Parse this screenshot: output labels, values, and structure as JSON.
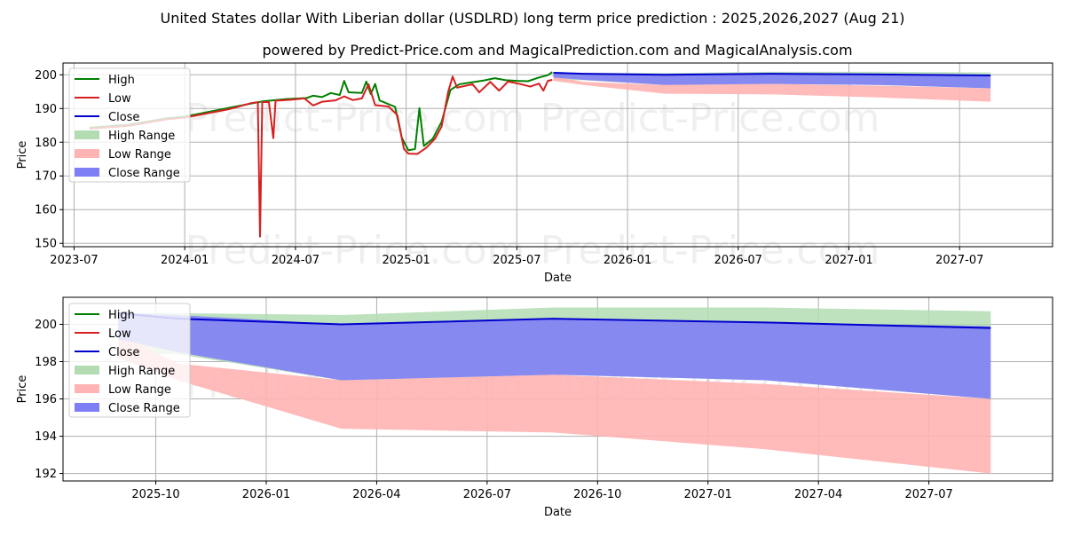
{
  "chart_data": {
    "title": "United States dollar With Liberian dollar (USDLRD) long term price prediction : 2025,2026,2027 (Aug 21)",
    "subtitle": "powered by Predict-Price.com and MagicalPrediction.com and MagicalAnalysis.com",
    "watermark": "Predict-Price.com",
    "legend_entries": [
      "High",
      "Low",
      "Close",
      "High Range",
      "Low Range",
      "Close Range"
    ],
    "colors": {
      "high": "#008000",
      "low": "#d62020",
      "close": "#0000cc",
      "high_range": "#b3dcb3",
      "low_range": "#ffb3b3",
      "close_range": "#7f7ff5",
      "grid": "#b0b0b0"
    },
    "charts": [
      {
        "type": "line",
        "xlabel": "Date",
        "ylabel": "Price",
        "grid": true,
        "legend_position": "top-left",
        "x_ticks": [
          "2023-07",
          "2024-01",
          "2024-07",
          "2025-01",
          "2025-07",
          "2026-01",
          "2026-07",
          "2027-01",
          "2027-07"
        ],
        "y_ticks": [
          "150",
          "160",
          "170",
          "180",
          "190",
          "200"
        ],
        "xlim": [
          2023.45,
          2027.92
        ],
        "ylim": [
          149,
          203.5
        ],
        "series": [
          {
            "name": "High",
            "points": [
              [
                2023.57,
                184.3
              ],
              [
                2023.75,
                185.2
              ],
              [
                2023.92,
                187.1
              ],
              [
                2024.0,
                187.6
              ],
              [
                2024.2,
                190.2
              ],
              [
                2024.35,
                192.1
              ],
              [
                2024.46,
                192.8
              ],
              [
                2024.55,
                193.1
              ],
              [
                2024.58,
                193.8
              ],
              [
                2024.62,
                193.4
              ],
              [
                2024.66,
                194.6
              ],
              [
                2024.7,
                194.0
              ],
              [
                2024.72,
                198.2
              ],
              [
                2024.74,
                194.8
              ],
              [
                2024.8,
                194.6
              ],
              [
                2024.82,
                198.0
              ],
              [
                2024.84,
                194.3
              ],
              [
                2024.86,
                197.3
              ],
              [
                2024.88,
                192.4
              ],
              [
                2024.95,
                190.5
              ],
              [
                2024.98,
                181.4
              ],
              [
                2025.01,
                177.6
              ],
              [
                2025.04,
                178.0
              ],
              [
                2025.06,
                190.1
              ],
              [
                2025.08,
                178.9
              ],
              [
                2025.12,
                181.0
              ],
              [
                2025.16,
                186.0
              ],
              [
                2025.2,
                195.5
              ],
              [
                2025.24,
                197.2
              ],
              [
                2025.3,
                197.8
              ],
              [
                2025.35,
                198.3
              ],
              [
                2025.4,
                199.0
              ],
              [
                2025.45,
                198.4
              ],
              [
                2025.5,
                198.2
              ],
              [
                2025.55,
                198.1
              ],
              [
                2025.6,
                199.2
              ],
              [
                2025.64,
                199.9
              ],
              [
                2025.66,
                200.8
              ]
            ]
          },
          {
            "name": "Low",
            "points": [
              [
                2023.57,
                184.0
              ],
              [
                2023.75,
                184.9
              ],
              [
                2023.92,
                186.8
              ],
              [
                2024.0,
                187.3
              ],
              [
                2024.2,
                189.8
              ],
              [
                2024.3,
                191.6
              ],
              [
                2024.33,
                191.9
              ],
              [
                2024.34,
                152.0
              ],
              [
                2024.35,
                191.9
              ],
              [
                2024.38,
                191.9
              ],
              [
                2024.4,
                181.2
              ],
              [
                2024.41,
                192.3
              ],
              [
                2024.48,
                192.6
              ],
              [
                2024.54,
                193.0
              ],
              [
                2024.58,
                190.9
              ],
              [
                2024.62,
                192.0
              ],
              [
                2024.68,
                192.4
              ],
              [
                2024.72,
                193.6
              ],
              [
                2024.76,
                192.5
              ],
              [
                2024.8,
                193.0
              ],
              [
                2024.83,
                197.2
              ],
              [
                2024.86,
                191.0
              ],
              [
                2024.92,
                190.6
              ],
              [
                2024.96,
                188.1
              ],
              [
                2024.99,
                178.0
              ],
              [
                2025.01,
                176.6
              ],
              [
                2025.05,
                176.5
              ],
              [
                2025.09,
                178.3
              ],
              [
                2025.13,
                181.0
              ],
              [
                2025.16,
                184.6
              ],
              [
                2025.19,
                195.0
              ],
              [
                2025.21,
                199.5
              ],
              [
                2025.23,
                196.2
              ],
              [
                2025.3,
                197.2
              ],
              [
                2025.33,
                194.8
              ],
              [
                2025.38,
                197.9
              ],
              [
                2025.42,
                195.3
              ],
              [
                2025.46,
                198.0
              ],
              [
                2025.52,
                197.2
              ],
              [
                2025.56,
                196.5
              ],
              [
                2025.6,
                197.4
              ],
              [
                2025.62,
                195.3
              ],
              [
                2025.64,
                198.2
              ],
              [
                2025.66,
                198.5
              ]
            ]
          },
          {
            "name": "Close",
            "points": [
              [
                2025.665,
                200.6
              ],
              [
                2025.8,
                200.3
              ],
              [
                2026.17,
                200.0
              ],
              [
                2026.65,
                200.3
              ],
              [
                2027.13,
                200.1
              ],
              [
                2027.64,
                199.8
              ]
            ]
          },
          {
            "name": "High Range",
            "points_upper": [
              [
                2025.665,
                200.6
              ],
              [
                2025.8,
                200.6
              ],
              [
                2026.17,
                200.5
              ],
              [
                2026.65,
                200.9
              ],
              [
                2027.13,
                200.9
              ],
              [
                2027.64,
                200.7
              ]
            ],
            "points_lower": [
              [
                2025.665,
                198.4
              ],
              [
                2025.8,
                198.4
              ],
              [
                2026.17,
                197.0
              ],
              [
                2026.65,
                197.3
              ],
              [
                2027.13,
                197.0
              ],
              [
                2027.64,
                196.0
              ]
            ]
          },
          {
            "name": "Low Range",
            "points_upper": [
              [
                2025.665,
                199.5
              ],
              [
                2025.8,
                197.9
              ],
              [
                2026.17,
                197.0
              ],
              [
                2026.65,
                197.3
              ],
              [
                2027.13,
                196.8
              ],
              [
                2027.64,
                196.0
              ]
            ],
            "points_lower": [
              [
                2025.665,
                198.2
              ],
              [
                2025.8,
                197.0
              ],
              [
                2026.17,
                194.4
              ],
              [
                2026.65,
                194.2
              ],
              [
                2027.13,
                193.3
              ],
              [
                2027.64,
                192.0
              ]
            ]
          },
          {
            "name": "Close Range",
            "points_upper": [
              [
                2025.665,
                200.6
              ],
              [
                2025.8,
                200.5
              ],
              [
                2026.17,
                200.0
              ],
              [
                2026.65,
                200.3
              ],
              [
                2027.13,
                200.1
              ],
              [
                2027.64,
                199.9
              ]
            ],
            "points_lower": [
              [
                2025.665,
                199.2
              ],
              [
                2025.8,
                198.5
              ],
              [
                2026.17,
                197.0
              ],
              [
                2026.65,
                197.3
              ],
              [
                2027.13,
                197.0
              ],
              [
                2027.64,
                196.0
              ]
            ]
          }
        ]
      },
      {
        "type": "line",
        "xlabel": "Date",
        "ylabel": "Price",
        "grid": true,
        "legend_position": "top-left",
        "x_ticks": [
          "2025-10",
          "2026-01",
          "2026-04",
          "2026-07",
          "2026-10",
          "2027-01",
          "2027-04",
          "2027-07"
        ],
        "y_ticks": [
          "192",
          "194",
          "196",
          "198",
          "200"
        ],
        "xlim": [
          2025.54,
          2027.78
        ],
        "ylim": [
          191.6,
          201.45
        ],
        "series": [
          {
            "name": "Close",
            "points": [
              [
                2025.665,
                200.6
              ],
              [
                2025.8,
                200.3
              ],
              [
                2026.17,
                200.0
              ],
              [
                2026.65,
                200.3
              ],
              [
                2027.13,
                200.1
              ],
              [
                2027.64,
                199.8
              ]
            ]
          },
          {
            "name": "High Range",
            "points_upper": [
              [
                2025.665,
                200.6
              ],
              [
                2025.8,
                200.6
              ],
              [
                2026.17,
                200.5
              ],
              [
                2026.65,
                200.9
              ],
              [
                2027.13,
                200.9
              ],
              [
                2027.64,
                200.7
              ]
            ],
            "points_lower": [
              [
                2025.665,
                198.4
              ],
              [
                2025.8,
                198.4
              ],
              [
                2026.17,
                197.0
              ],
              [
                2026.65,
                197.3
              ],
              [
                2027.13,
                197.0
              ],
              [
                2027.64,
                196.0
              ]
            ]
          },
          {
            "name": "Low Range",
            "points_upper": [
              [
                2025.665,
                199.5
              ],
              [
                2025.8,
                197.9
              ],
              [
                2026.17,
                197.0
              ],
              [
                2026.65,
                197.3
              ],
              [
                2027.13,
                196.8
              ],
              [
                2027.64,
                196.0
              ]
            ],
            "points_lower": [
              [
                2025.665,
                198.2
              ],
              [
                2025.8,
                197.0
              ],
              [
                2026.17,
                194.4
              ],
              [
                2026.65,
                194.2
              ],
              [
                2027.13,
                193.3
              ],
              [
                2027.64,
                192.0
              ]
            ]
          },
          {
            "name": "Close Range",
            "points_upper": [
              [
                2025.665,
                200.6
              ],
              [
                2025.8,
                200.5
              ],
              [
                2026.17,
                200.0
              ],
              [
                2026.65,
                200.3
              ],
              [
                2027.13,
                200.1
              ],
              [
                2027.64,
                199.9
              ]
            ],
            "points_lower": [
              [
                2025.665,
                199.2
              ],
              [
                2025.8,
                198.5
              ],
              [
                2026.17,
                197.0
              ],
              [
                2026.65,
                197.3
              ],
              [
                2027.13,
                197.0
              ],
              [
                2027.64,
                196.0
              ]
            ]
          }
        ]
      }
    ]
  }
}
